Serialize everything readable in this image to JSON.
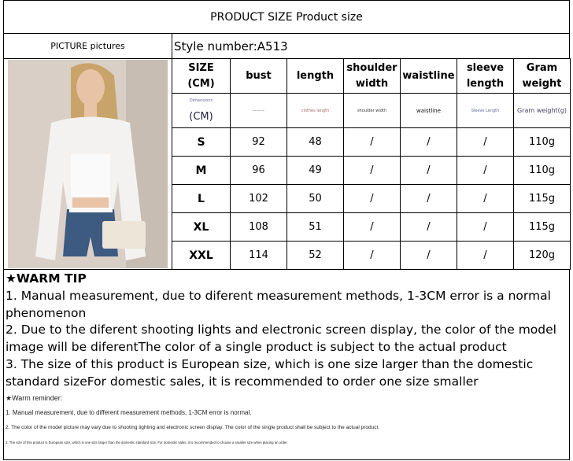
{
  "title": "PRODUCT SIZE Product size",
  "picture_label": "PICTURE pictures",
  "style_number": "Style number:A513",
  "headers": [
    "SIZE\n(CM)",
    "bust",
    "length",
    "shoulder width",
    "waistline",
    "sleeve length",
    "Gram weight"
  ],
  "dimension_row": {
    "top": "Dimensions",
    "cm": "(CM)",
    "bust": "———",
    "length": "clothes length",
    "shoulder": "shoulder width",
    "waist": "waistline",
    "sleeve": "Sleeve Length",
    "gram": "Gram weight(g)"
  },
  "rows": [
    [
      "S",
      "92",
      "48",
      "/",
      "/",
      "/",
      "110g"
    ],
    [
      "M",
      "96",
      "49",
      "/",
      "/",
      "/",
      "110g"
    ],
    [
      "L",
      "102",
      "50",
      "/",
      "/",
      "/",
      "115g"
    ],
    [
      "XL",
      "108",
      "51",
      "/",
      "/",
      "/",
      "115g"
    ],
    [
      "XXL",
      "114",
      "52",
      "/",
      "/",
      "/",
      "120g"
    ]
  ],
  "warm_tip": {
    "heading": "★WARM TIP",
    "lines": [
      "1. Manual measurement, due to diferent measurement methods, 1-3CM error is a normal phenomenon",
      "2. Due to the diferent shooting lights and electronic screen display, the color of the model image will be diferentThe color of a single product is subject to the actual product",
      "3. The size of this product is European size, which is one size larger than the domestic standard sizeFor domestic sales, it is recommended to order one size smaller"
    ]
  },
  "warm_reminder": {
    "heading": "★Warm reminder:",
    "lines": [
      "1. Manual measurement, due to different measurement methods, 1-3CM error is normal.",
      "2. The color of the model picture may vary due to shooting lighting and electronic screen display. The color of the single product shall be subject to the actual product.",
      "3. The size of this product is European size, which is one size larger than the domestic standard size. For domestic sales, it is recommended to choose a smaller size when placing an order."
    ]
  }
}
